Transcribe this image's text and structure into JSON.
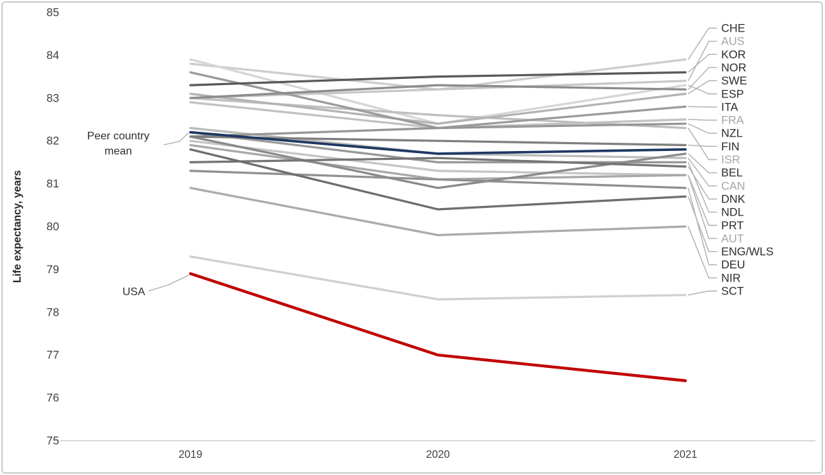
{
  "page": {
    "background": "#ffffff",
    "frame_border_color": "#cccccc"
  },
  "chart_data": {
    "type": "line",
    "title": "",
    "xlabel": "",
    "ylabel": "Life expectancy, years",
    "x_categories": [
      "2019",
      "2020",
      "2021"
    ],
    "ylim": [
      75,
      85
    ],
    "yticks": [
      85,
      84,
      83,
      82,
      81,
      80,
      79,
      78,
      77,
      76,
      75
    ],
    "grid": false,
    "legend_position": "right-edge-labels",
    "axis_color": "#d9d9d9",
    "tick_label_color": "#3f3f3f",
    "leader_line_color": "#b0b0b0",
    "annotations": {
      "peer_mean_label_lines": [
        "Peer country",
        "mean"
      ],
      "usa_label": "USA"
    },
    "right_label_order": [
      "CHE",
      "AUS",
      "KOR",
      "NOR",
      "SWE",
      "ESP",
      "ITA",
      "FRA",
      "NZL",
      "FIN",
      "ISR",
      "BEL",
      "CAN",
      "DNK",
      "NDL",
      "PRT",
      "AUT",
      "ENG/WLS",
      "DEU",
      "NIR",
      "SCT"
    ],
    "series": [
      {
        "name": "CHE",
        "values": [
          83.8,
          83.2,
          83.9
        ],
        "color": "#cdcdcd",
        "label_color": "#2e2e2e",
        "width": 3.2,
        "role": "peer"
      },
      {
        "name": "ESP",
        "values": [
          83.9,
          82.4,
          83.3
        ],
        "color": "#d6d6d6",
        "label_color": "#2e2e2e",
        "width": 3.2,
        "role": "peer"
      },
      {
        "name": "SCT",
        "values": [
          79.3,
          78.3,
          78.4
        ],
        "color": "#d0d0d0",
        "label_color": "#2e2e2e",
        "width": 3.2,
        "role": "peer"
      },
      {
        "name": "AUS",
        "values": [
          83.0,
          83.2,
          83.4
        ],
        "color": "#c7c7c7",
        "label_color": "#a6a6a6",
        "width": 3.2,
        "role": "peer"
      },
      {
        "name": "FRA",
        "values": [
          82.9,
          82.3,
          82.5
        ],
        "color": "#c2c2c2",
        "label_color": "#a6a6a6",
        "width": 3.2,
        "role": "peer"
      },
      {
        "name": "ISR",
        "values": [
          83.0,
          82.6,
          82.3
        ],
        "color": "#bfbfbf",
        "label_color": "#a6a6a6",
        "width": 3.2,
        "role": "peer"
      },
      {
        "name": "CAN",
        "values": [
          82.3,
          81.7,
          81.6
        ],
        "color": "#bcbcbc",
        "label_color": "#a6a6a6",
        "width": 3.2,
        "role": "peer"
      },
      {
        "name": "AUT",
        "values": [
          82.0,
          81.3,
          81.2
        ],
        "color": "#c5c5c5",
        "label_color": "#a6a6a6",
        "width": 3.2,
        "role": "peer"
      },
      {
        "name": "SWE",
        "values": [
          83.1,
          82.4,
          83.1
        ],
        "color": "#b3b3b3",
        "label_color": "#2e2e2e",
        "width": 3.2,
        "role": "peer"
      },
      {
        "name": "NIR",
        "values": [
          80.9,
          79.8,
          80.0
        ],
        "color": "#ababab",
        "label_color": "#2e2e2e",
        "width": 3.2,
        "role": "peer"
      },
      {
        "name": "PRT",
        "values": [
          81.9,
          81.1,
          81.2
        ],
        "color": "#a8a8a8",
        "label_color": "#2e2e2e",
        "width": 3.2,
        "role": "peer"
      },
      {
        "name": "ITA",
        "values": [
          83.6,
          82.3,
          82.8
        ],
        "color": "#9b9b9b",
        "label_color": "#2e2e2e",
        "width": 3.2,
        "role": "peer"
      },
      {
        "name": "NDL",
        "values": [
          82.2,
          81.5,
          81.5
        ],
        "color": "#999999",
        "label_color": "#2e2e2e",
        "width": 3.2,
        "role": "peer"
      },
      {
        "name": "NZL",
        "values": [
          82.1,
          82.3,
          82.4
        ],
        "color": "#969696",
        "label_color": "#2e2e2e",
        "width": 3.2,
        "role": "peer"
      },
      {
        "name": "DEU",
        "values": [
          81.3,
          81.1,
          80.9
        ],
        "color": "#909090",
        "label_color": "#2e2e2e",
        "width": 3.2,
        "role": "peer"
      },
      {
        "name": "NOR",
        "values": [
          83.0,
          83.3,
          83.2
        ],
        "color": "#8c8c8c",
        "label_color": "#2e2e2e",
        "width": 3.2,
        "role": "peer"
      },
      {
        "name": "BEL",
        "values": [
          82.1,
          80.9,
          81.7
        ],
        "color": "#8a8a8a",
        "label_color": "#2e2e2e",
        "width": 3.2,
        "role": "peer"
      },
      {
        "name": "FIN",
        "values": [
          82.1,
          82.0,
          81.9
        ],
        "color": "#7f7f7f",
        "label_color": "#2e2e2e",
        "width": 3.2,
        "role": "peer"
      },
      {
        "name": "DNK",
        "values": [
          81.5,
          81.6,
          81.4
        ],
        "color": "#757575",
        "label_color": "#2e2e2e",
        "width": 3.2,
        "role": "peer"
      },
      {
        "name": "ENG/WLS",
        "values": [
          81.8,
          80.4,
          80.7
        ],
        "color": "#6e6e6e",
        "label_color": "#2e2e2e",
        "width": 3.2,
        "role": "peer"
      },
      {
        "name": "KOR",
        "values": [
          83.3,
          83.5,
          83.6
        ],
        "color": "#5a5a5a",
        "label_color": "#2e2e2e",
        "width": 3.2,
        "role": "peer"
      },
      {
        "name": "Peer country mean",
        "values": [
          82.2,
          81.7,
          81.8
        ],
        "color": "#1f3864",
        "label_color": "#2e2e2e",
        "width": 3.6,
        "role": "mean"
      },
      {
        "name": "USA",
        "values": [
          78.9,
          77.0,
          76.4
        ],
        "color": "#c00000",
        "label_color": "#2e2e2e",
        "width": 4.2,
        "role": "usa"
      }
    ]
  }
}
